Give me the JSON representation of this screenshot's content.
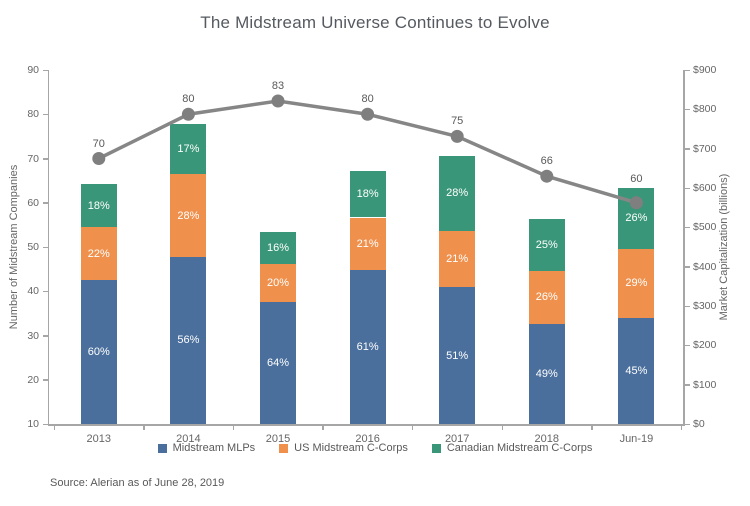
{
  "source_note": "Source: Alerian as of June 28, 2019",
  "chart_data": {
    "type": "bar",
    "subtype": "stacked-bar-with-line-overlay",
    "title": "The Midstream Universe Continues to Evolve",
    "categories": [
      "2013",
      "2014",
      "2015",
      "2016",
      "2017",
      "2018",
      "Jun-19"
    ],
    "left_axis": {
      "label": "Number of Midstream Companies",
      "min": 10,
      "max": 90,
      "step": 10,
      "prefix": ""
    },
    "right_axis": {
      "label": "Market Capitalization (billions)",
      "min": 0,
      "max": 900,
      "step": 100,
      "prefix": "$"
    },
    "legend_position": "bottom-center",
    "grid": false,
    "bar_axis": "right",
    "bar_totals_billions": [
      610,
      762,
      487,
      643,
      682,
      520,
      600
    ],
    "bar_series": [
      {
        "name": "Midstream MLPs",
        "color": "#4b6f9c",
        "values": [
          366,
          425,
          310,
          392,
          348,
          255,
          270
        ],
        "pct_labels": [
          "60%",
          "56%",
          "64%",
          "61%",
          "51%",
          "49%",
          "45%"
        ]
      },
      {
        "name": "US Midstream C-Corps",
        "color": "#ef914d",
        "values": [
          134,
          210,
          97,
          133,
          143,
          135,
          175
        ],
        "pct_labels": [
          "22%",
          "28%",
          "20%",
          "21%",
          "21%",
          "26%",
          "29%"
        ]
      },
      {
        "name": "Canadian Midstream C-Corps",
        "color": "#3a9678",
        "values": [
          110,
          127,
          80,
          118,
          191,
          130,
          155
        ],
        "pct_labels": [
          "18%",
          "17%",
          "16%",
          "18%",
          "28%",
          "25%",
          "26%"
        ]
      }
    ],
    "line_series": {
      "name": "Number of Midstream Companies",
      "axis": "left",
      "color": "#868686",
      "dot_color": "#7f7f7f",
      "values": [
        70,
        80,
        83,
        80,
        75,
        66,
        60
      ],
      "labels": [
        "70",
        "80",
        "83",
        "80",
        "75",
        "66",
        "60"
      ]
    }
  }
}
